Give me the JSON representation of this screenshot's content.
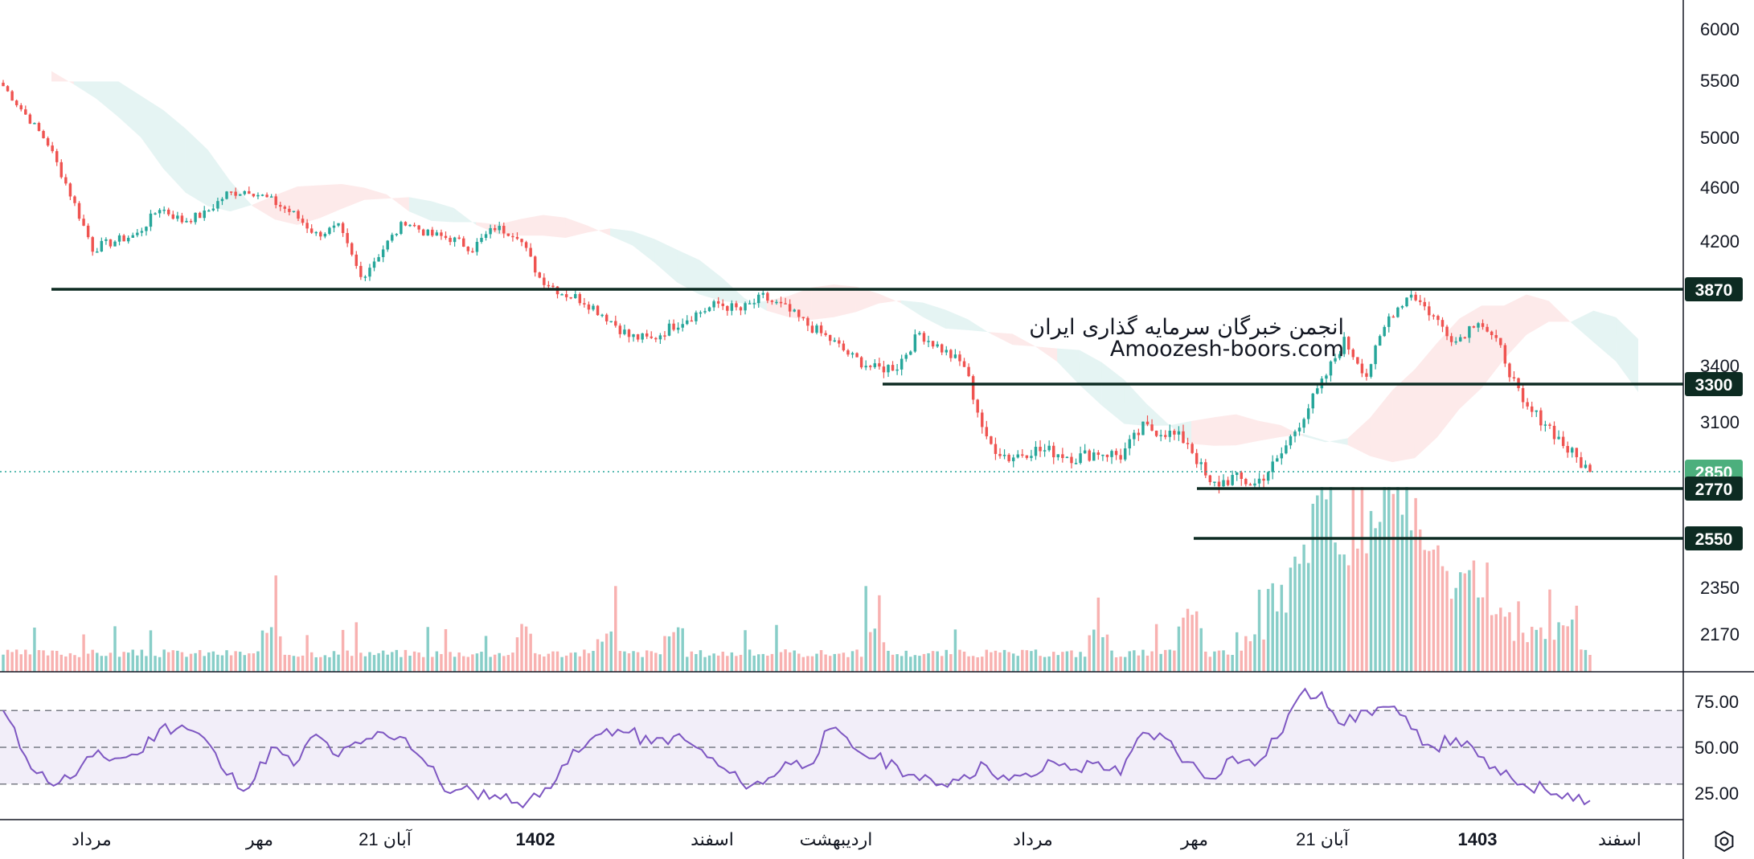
{
  "watermark": {
    "line1": "انجمن خبرگان سرمایه گذاری ایران",
    "line2": "Amoozesh-boors.com"
  },
  "chart_data": [
    {
      "type": "candlestick",
      "title": "",
      "ylim": [
        1950,
        6200
      ],
      "y_ticks": [
        {
          "value": 6000,
          "label": "6000"
        },
        {
          "value": 5500,
          "label": "5500"
        },
        {
          "value": 5000,
          "label": "5000"
        },
        {
          "value": 4600,
          "label": "4600"
        },
        {
          "value": 4200,
          "label": "4200"
        },
        {
          "value": 3400,
          "label": "3400"
        },
        {
          "value": 3100,
          "label": "3100"
        },
        {
          "value": 2350,
          "label": "2350"
        },
        {
          "value": 2170,
          "label": "2170"
        }
      ],
      "level_tags": [
        {
          "value": 3870,
          "label": "3870",
          "color": "#0d2b22"
        },
        {
          "value": 3300,
          "label": "3300",
          "color": "#0d2b22"
        },
        {
          "value": 2850,
          "label": "2850",
          "color": "#4caf7d"
        },
        {
          "value": 2770,
          "label": "2770",
          "color": "#0d2b22"
        },
        {
          "value": 2550,
          "label": "2550",
          "color": "#0d2b22"
        }
      ],
      "horizontal_levels": [
        3870,
        3300,
        2770,
        2550
      ],
      "last_price": 2850,
      "x_labels": [
        {
          "label": "مرداد",
          "bold": false
        },
        {
          "label": "مهر",
          "bold": false
        },
        {
          "label": "21 آبان",
          "bold": false
        },
        {
          "label": "1402",
          "bold": true
        },
        {
          "label": "اسفند",
          "bold": false
        },
        {
          "label": "اردیبهشت",
          "bold": false
        },
        {
          "label": "مرداد",
          "bold": false
        },
        {
          "label": "مهر",
          "bold": false
        },
        {
          "label": "21 آبان",
          "bold": false
        },
        {
          "label": "1403",
          "bold": true
        },
        {
          "label": "اسفند",
          "bold": false
        }
      ],
      "series": [
        {
          "name": "close",
          "values": [
            5450,
            5200,
            4950,
            4550,
            4150,
            4200,
            4250,
            4450,
            4350,
            4400,
            4550,
            4580,
            4500,
            4400,
            4250,
            4300,
            3950,
            4150,
            4350,
            4250,
            4220,
            4150,
            4300,
            4250,
            3950,
            3850,
            3800,
            3700,
            3580,
            3560,
            3650,
            3720,
            3780,
            3740,
            3820,
            3750,
            3650,
            3560,
            3450,
            3380,
            3400,
            3600,
            3500,
            3400,
            3000,
            2920,
            2960,
            2950,
            2920,
            2950,
            2930,
            3070,
            3050,
            3000,
            2780,
            2820,
            2790,
            2900,
            3100,
            3300,
            3550,
            3350,
            3700,
            3850,
            3700,
            3550,
            3690,
            3500,
            3180,
            3100,
            2960,
            2850
          ]
        },
        {
          "name": "volume",
          "values": [
            1,
            1,
            1,
            1,
            1,
            1,
            1,
            1,
            1,
            1,
            1,
            1,
            2,
            1,
            1,
            1,
            1,
            1,
            1,
            1,
            1,
            1,
            1,
            1,
            1,
            1,
            1,
            2,
            1,
            1,
            2,
            1,
            1,
            1,
            1,
            1,
            1,
            1,
            1,
            2,
            1,
            1,
            1,
            1,
            1,
            1,
            1,
            1,
            1,
            2,
            1,
            1,
            1,
            3,
            1,
            1,
            2,
            4,
            7,
            9,
            6,
            8,
            10,
            8,
            6,
            5,
            5,
            3,
            2,
            2,
            3,
            1
          ]
        }
      ]
    },
    {
      "type": "line",
      "title": "",
      "ylim": [
        15,
        85
      ],
      "y_ticks": [
        {
          "value": 75,
          "label": "75.00"
        },
        {
          "value": 50,
          "label": "50.00"
        },
        {
          "value": 25,
          "label": "25.00"
        }
      ],
      "bands": [
        30,
        50,
        70
      ],
      "series": [
        {
          "name": "",
          "values": [
            70,
            45,
            31,
            33,
            45,
            44,
            46,
            60,
            62,
            55,
            35,
            28,
            50,
            40,
            57,
            45,
            52,
            58,
            55,
            40,
            25,
            26,
            24,
            20,
            23,
            40,
            50,
            60,
            58,
            52,
            56,
            50,
            40,
            31,
            30,
            42,
            40,
            60,
            50,
            44,
            40,
            32,
            30,
            35,
            40,
            32,
            34,
            42,
            38,
            42,
            35,
            58,
            55,
            42,
            33,
            45,
            40,
            55,
            78,
            80,
            62,
            70,
            72,
            60,
            50,
            55,
            45,
            35,
            30,
            27,
            25,
            21
          ]
        }
      ]
    }
  ]
}
